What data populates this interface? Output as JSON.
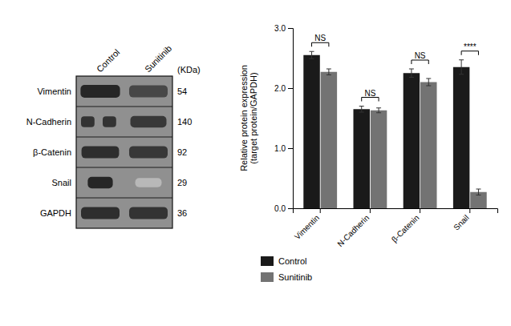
{
  "chart_data": [
    {
      "type": "bar",
      "categories": [
        "Vimentin",
        "N-Cadherin",
        "β-Catenin",
        "Snail"
      ],
      "series": [
        {
          "name": "Control",
          "color": "#1a1a1a",
          "values": [
            2.55,
            1.65,
            2.25,
            2.35
          ],
          "errors": [
            0.06,
            0.05,
            0.07,
            0.12
          ]
        },
        {
          "name": "Sunitinib",
          "color": "#737373",
          "values": [
            2.27,
            1.63,
            2.1,
            0.27
          ],
          "errors": [
            0.05,
            0.04,
            0.06,
            0.05
          ]
        }
      ],
      "ylabel": "Relative protein expression\n(target protein/GAPDH)",
      "ylim": [
        0,
        3.0
      ],
      "yticks": [
        {
          "value": 0,
          "label": "0.0"
        },
        {
          "value": 1,
          "label": "1.0"
        },
        {
          "value": 2,
          "label": "2.0"
        },
        {
          "value": 3,
          "label": "3.0"
        }
      ],
      "annotations": [
        {
          "text": "NS",
          "x": "Vimentin"
        },
        {
          "text": "NS",
          "x": "N-Cadherin"
        },
        {
          "text": "NS",
          "x": "β-Catenin"
        },
        {
          "text": "****",
          "x": "Snail"
        }
      ],
      "grid": false,
      "legend": "bottom"
    },
    {
      "type": "blot",
      "categories": [
        "Vimentin",
        "N-Cadherin",
        "β-Catenin",
        "Snail",
        "GAPDH"
      ],
      "columns": [
        "Control",
        "Sunitinib"
      ],
      "kda": [
        54,
        140,
        92,
        29,
        36
      ],
      "kda_label": "(KDa)",
      "color": "#909090"
    }
  ]
}
